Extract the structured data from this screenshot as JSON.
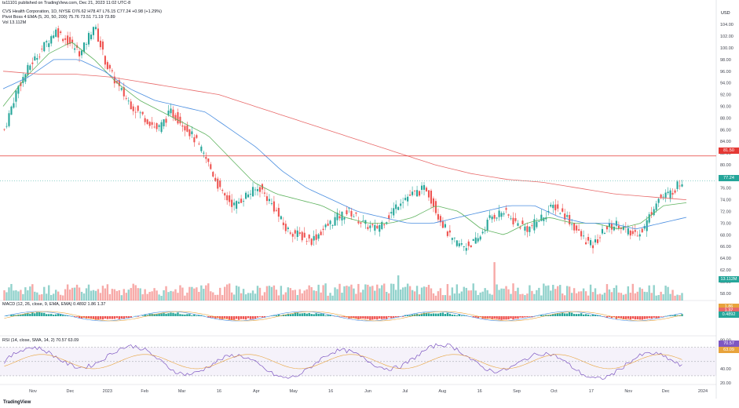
{
  "header": {
    "published": "ts11101 published on TradingView.com, Dec 21, 2023 11:02 UTC-8",
    "symbol_line": "CVS Health Corporation, 1D, NYSE  O76.62  H78.47  L76.15  C77.24  +0.98 (+1.29%)",
    "pivot_line": "Pivot Boss 4 EMA (5, 20, 50, 200)  75.76  73.51  71.19  73.89",
    "vol_line": "Vol  13.112M",
    "currency": "USD"
  },
  "price_badges": {
    "hline": "81.50",
    "last": "77.24",
    "volume": "13.112M"
  },
  "macd": {
    "label": "MACD (12, 26, close, 9, EMA, EMA)  0.4892  1.86  1.37",
    "badges": [
      "1.86",
      "1.37",
      "0.4892"
    ]
  },
  "rsi": {
    "label": "RSI (14, close, SMA, 14, 2)  70.57  63.09",
    "badges": [
      "70.57",
      "63.09"
    ],
    "ticks": [
      "80.00",
      "40.00",
      "20.00"
    ]
  },
  "footer": "TradingView",
  "colors": {
    "up": "#26a69a",
    "down": "#ef5350",
    "ema5": "#e8a33c",
    "ema20": "#5fb35f",
    "ema50": "#4a8ee0",
    "ema200": "#e86a6a",
    "hline": "#e53935",
    "rsi": "#7e57c2"
  },
  "chart_data": {
    "type": "candlestick",
    "title": "CVS Health Corporation, 1D, NYSE",
    "x_labels": [
      "Nov",
      "Dec",
      "2023",
      "Feb",
      "Mar",
      "16",
      "Apr",
      "May",
      "16",
      "Jun",
      "Jul",
      "Aug",
      "16",
      "Sep",
      "Oct",
      "17",
      "Nov",
      "Dec",
      "2024"
    ],
    "y_ticks": [
      104,
      102,
      100,
      98,
      96,
      94,
      92,
      90,
      88,
      86,
      84,
      82,
      80,
      78,
      76,
      74,
      72,
      70,
      68,
      66,
      64,
      62,
      60,
      58
    ],
    "ylim": [
      56.5,
      105.5
    ],
    "horizontal_line": 81.5,
    "last_close": 77.24,
    "ohlc_anchor_closes": [
      86,
      93,
      97,
      100,
      103,
      101,
      99,
      104,
      97,
      93,
      90,
      88,
      86,
      89,
      87,
      84,
      80,
      75,
      73,
      75,
      76,
      73,
      69,
      68,
      67,
      69,
      71,
      72,
      70,
      69,
      71,
      74,
      75,
      76,
      71,
      67,
      66,
      67,
      71,
      72,
      70,
      69,
      71,
      73,
      71,
      68,
      66,
      69,
      70,
      68,
      69,
      74,
      75,
      77.24
    ],
    "ema_20_anchor": [
      90,
      95,
      99,
      101,
      98,
      94,
      91,
      89,
      87,
      85,
      81,
      77,
      75,
      74,
      73,
      71,
      70,
      70,
      71,
      73,
      72,
      69,
      68,
      70,
      71,
      70,
      70,
      69,
      70,
      73,
      73.5
    ],
    "ema_50_anchor": [
      93,
      95,
      98,
      98,
      96,
      93,
      91,
      90,
      89,
      86,
      83,
      79,
      76,
      74,
      72,
      71,
      70,
      70,
      71,
      72,
      73,
      73,
      71,
      70,
      70,
      69,
      70,
      71
    ],
    "ema_200_anchor": [
      96,
      95.5,
      95.5,
      95,
      94,
      93,
      92,
      90,
      88,
      86,
      84,
      82,
      80,
      78.5,
      77.5,
      77,
      76,
      75,
      74.5,
      74
    ],
    "indicators": {
      "macd": {
        "macd": 1.86,
        "signal": 1.37,
        "histogram": 0.4892
      },
      "rsi": {
        "rsi": 70.57,
        "rsi_ma": 63.09,
        "ylim": [
          20,
          80
        ]
      }
    }
  }
}
